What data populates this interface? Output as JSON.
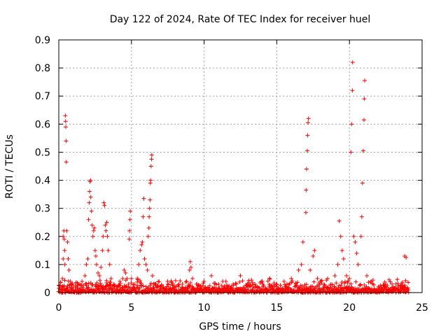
{
  "chart_data": {
    "type": "scatter",
    "title": "Day 122 of 2024, Rate Of TEC Index for receiver huel",
    "xlabel": "GPS time / hours",
    "ylabel": "ROTI / TECUs",
    "xlim": [
      0,
      25
    ],
    "ylim": [
      0,
      0.9
    ],
    "xticks": [
      0,
      5,
      10,
      15,
      20,
      25
    ],
    "xtick_labels": [
      "0",
      "5",
      "10",
      "15",
      "20",
      "25"
    ],
    "yticks": [
      0,
      0.1,
      0.2,
      0.3,
      0.4,
      0.5,
      0.6,
      0.7,
      0.8,
      0.9
    ],
    "ytick_labels": [
      "0",
      "0.1",
      "0.2",
      "0.3",
      "0.4",
      "0.5",
      "0.6",
      "0.7",
      "0.8",
      "0.9"
    ],
    "grid": true,
    "marker": "+",
    "color": "#ff0000",
    "series": [
      {
        "name": "ROTI",
        "points": [
          [
            0.1,
            0.01
          ],
          [
            0.2,
            0.02
          ],
          [
            0.25,
            0.05
          ],
          [
            0.3,
            0.12
          ],
          [
            0.3,
            0.2
          ],
          [
            0.35,
            0.22
          ],
          [
            0.38,
            0.19
          ],
          [
            0.4,
            0.15
          ],
          [
            0.42,
            0.1
          ],
          [
            0.45,
            0.63
          ],
          [
            0.47,
            0.61
          ],
          [
            0.48,
            0.59
          ],
          [
            0.5,
            0.54
          ],
          [
            0.52,
            0.465
          ],
          [
            0.55,
            0.22
          ],
          [
            0.6,
            0.18
          ],
          [
            0.65,
            0.12
          ],
          [
            0.7,
            0.08
          ],
          [
            0.8,
            0.04
          ],
          [
            0.9,
            0.03
          ],
          [
            1.0,
            0.02
          ],
          [
            1.2,
            0.02
          ],
          [
            1.4,
            0.03
          ],
          [
            1.6,
            0.04
          ],
          [
            1.8,
            0.06
          ],
          [
            1.9,
            0.1
          ],
          [
            2.0,
            0.12
          ],
          [
            2.05,
            0.26
          ],
          [
            2.1,
            0.32
          ],
          [
            2.12,
            0.36
          ],
          [
            2.15,
            0.395
          ],
          [
            2.18,
            0.4
          ],
          [
            2.2,
            0.34
          ],
          [
            2.25,
            0.29
          ],
          [
            2.3,
            0.24
          ],
          [
            2.35,
            0.2
          ],
          [
            2.4,
            0.22
          ],
          [
            2.45,
            0.23
          ],
          [
            2.5,
            0.15
          ],
          [
            2.55,
            0.13
          ],
          [
            2.6,
            0.1
          ],
          [
            2.7,
            0.07
          ],
          [
            2.8,
            0.06
          ],
          [
            2.9,
            0.09
          ],
          [
            3.0,
            0.15
          ],
          [
            3.05,
            0.2
          ],
          [
            3.1,
            0.32
          ],
          [
            3.15,
            0.31
          ],
          [
            3.2,
            0.24
          ],
          [
            3.25,
            0.22
          ],
          [
            3.3,
            0.25
          ],
          [
            3.35,
            0.2
          ],
          [
            3.4,
            0.15
          ],
          [
            3.5,
            0.1
          ],
          [
            3.6,
            0.05
          ],
          [
            3.8,
            0.03
          ],
          [
            4.0,
            0.02
          ],
          [
            4.2,
            0.04
          ],
          [
            4.4,
            0.05
          ],
          [
            4.5,
            0.08
          ],
          [
            4.6,
            0.07
          ],
          [
            4.7,
            0.05
          ],
          [
            4.8,
            0.03
          ],
          [
            4.85,
            0.19
          ],
          [
            4.87,
            0.22
          ],
          [
            4.9,
            0.26
          ],
          [
            4.92,
            0.29
          ],
          [
            5.0,
            0.05
          ],
          [
            5.2,
            0.03
          ],
          [
            5.4,
            0.05
          ],
          [
            5.5,
            0.1
          ],
          [
            5.6,
            0.15
          ],
          [
            5.7,
            0.17
          ],
          [
            5.75,
            0.18
          ],
          [
            5.8,
            0.27
          ],
          [
            5.85,
            0.335
          ],
          [
            5.9,
            0.12
          ],
          [
            6.0,
            0.1
          ],
          [
            6.1,
            0.08
          ],
          [
            6.15,
            0.2
          ],
          [
            6.2,
            0.23
          ],
          [
            6.22,
            0.27
          ],
          [
            6.25,
            0.3
          ],
          [
            6.28,
            0.33
          ],
          [
            6.3,
            0.39
          ],
          [
            6.32,
            0.4
          ],
          [
            6.35,
            0.45
          ],
          [
            6.38,
            0.475
          ],
          [
            6.4,
            0.49
          ],
          [
            6.45,
            0.06
          ],
          [
            6.6,
            0.03
          ],
          [
            6.8,
            0.02
          ],
          [
            7.0,
            0.02
          ],
          [
            7.5,
            0.03
          ],
          [
            8.0,
            0.02
          ],
          [
            8.5,
            0.03
          ],
          [
            8.8,
            0.04
          ],
          [
            9.0,
            0.08
          ],
          [
            9.05,
            0.11
          ],
          [
            9.1,
            0.09
          ],
          [
            9.2,
            0.05
          ],
          [
            9.5,
            0.03
          ],
          [
            10.0,
            0.04
          ],
          [
            10.5,
            0.06
          ],
          [
            11.0,
            0.03
          ],
          [
            11.5,
            0.04
          ],
          [
            12.0,
            0.03
          ],
          [
            12.5,
            0.06
          ],
          [
            13.0,
            0.02
          ],
          [
            13.5,
            0.03
          ],
          [
            14.0,
            0.04
          ],
          [
            14.5,
            0.05
          ],
          [
            15.0,
            0.03
          ],
          [
            15.5,
            0.04
          ],
          [
            16.0,
            0.05
          ],
          [
            16.5,
            0.08
          ],
          [
            16.7,
            0.1
          ],
          [
            16.8,
            0.18
          ],
          [
            17.0,
            0.285
          ],
          [
            17.02,
            0.365
          ],
          [
            17.05,
            0.44
          ],
          [
            17.1,
            0.505
          ],
          [
            17.12,
            0.56
          ],
          [
            17.15,
            0.605
          ],
          [
            17.18,
            0.62
          ],
          [
            17.3,
            0.08
          ],
          [
            17.5,
            0.13
          ],
          [
            17.6,
            0.15
          ],
          [
            17.8,
            0.05
          ],
          [
            18.0,
            0.04
          ],
          [
            18.5,
            0.05
          ],
          [
            19.0,
            0.06
          ],
          [
            19.2,
            0.1
          ],
          [
            19.3,
            0.255
          ],
          [
            19.4,
            0.2
          ],
          [
            19.5,
            0.15
          ],
          [
            19.6,
            0.12
          ],
          [
            19.8,
            0.06
          ],
          [
            20.0,
            0.05
          ],
          [
            20.1,
            0.5
          ],
          [
            20.15,
            0.6
          ],
          [
            20.2,
            0.72
          ],
          [
            20.22,
            0.82
          ],
          [
            20.3,
            0.2
          ],
          [
            20.4,
            0.18
          ],
          [
            20.5,
            0.14
          ],
          [
            20.6,
            0.1
          ],
          [
            20.8,
            0.2
          ],
          [
            20.85,
            0.27
          ],
          [
            20.9,
            0.39
          ],
          [
            20.95,
            0.505
          ],
          [
            21.0,
            0.615
          ],
          [
            21.02,
            0.69
          ],
          [
            21.05,
            0.755
          ],
          [
            21.2,
            0.06
          ],
          [
            21.5,
            0.04
          ],
          [
            22.0,
            0.02
          ],
          [
            22.5,
            0.03
          ],
          [
            23.0,
            0.02
          ],
          [
            23.5,
            0.02
          ],
          [
            23.8,
            0.13
          ],
          [
            23.9,
            0.125
          ],
          [
            24.0,
            0.01
          ]
        ]
      }
    ]
  }
}
